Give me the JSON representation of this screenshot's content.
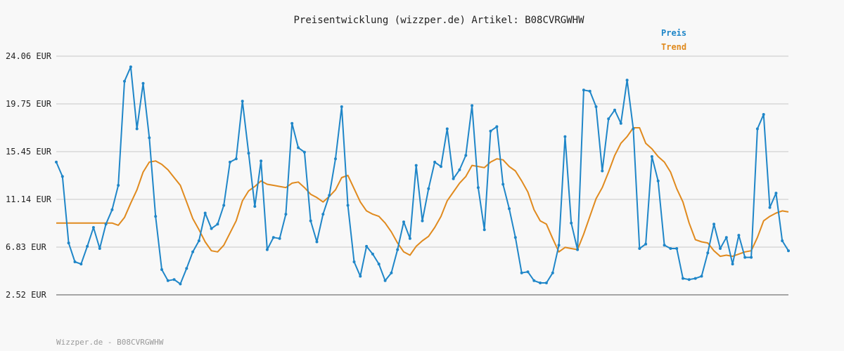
{
  "chart_data": {
    "type": "line",
    "title": "Preisentwicklung (wizzper.de) Artikel: B08CVRGWHW",
    "footer": "Wizzper.de - B08CVRGWHW",
    "y_ticks": [
      "24.06 EUR",
      "19.75 EUR",
      "15.45 EUR",
      "11.14 EUR",
      "6.83 EUR",
      "2.52 EUR"
    ],
    "ylim": [
      2.52,
      24.06
    ],
    "grid": true,
    "legend_position": "top-right",
    "series": [
      {
        "name": "Preis",
        "color": "#1f86c8",
        "markers": true,
        "values": [
          14.5,
          13.2,
          7.2,
          5.5,
          5.3,
          6.9,
          8.6,
          6.7,
          8.9,
          10.2,
          12.4,
          21.8,
          23.1,
          17.5,
          21.6,
          16.7,
          9.6,
          4.8,
          3.8,
          3.9,
          3.5,
          4.9,
          6.4,
          7.4,
          9.9,
          8.5,
          8.9,
          10.6,
          14.5,
          14.8,
          20.0,
          15.3,
          10.5,
          14.6,
          6.6,
          7.7,
          7.6,
          9.8,
          18.0,
          15.8,
          15.4,
          9.2,
          7.3,
          9.8,
          11.5,
          14.8,
          19.5,
          10.6,
          5.5,
          4.2,
          6.9,
          6.2,
          5.3,
          3.8,
          4.5,
          6.6,
          9.1,
          7.6,
          14.2,
          9.2,
          12.1,
          14.5,
          14.1,
          17.5,
          13.0,
          13.8,
          15.1,
          19.6,
          12.2,
          8.4,
          17.3,
          17.7,
          12.5,
          10.3,
          7.7,
          4.5,
          4.6,
          3.8,
          3.6,
          3.6,
          4.5,
          7.0,
          16.8,
          9.0,
          6.6,
          21.0,
          20.9,
          19.5,
          13.7,
          18.4,
          19.2,
          18.0,
          21.9,
          17.5,
          6.7,
          7.1,
          15.0,
          12.8,
          7.0,
          6.7,
          6.7,
          4.0,
          3.9,
          4.0,
          4.2,
          6.3,
          8.9,
          6.7,
          7.7,
          5.3,
          7.9,
          5.9,
          5.9,
          17.5,
          18.8,
          10.4,
          11.7,
          7.4,
          6.5
        ]
      },
      {
        "name": "Trend",
        "color": "#e08a1e",
        "markers": false,
        "values": [
          9.0,
          9.0,
          9.0,
          9.0,
          9.0,
          9.0,
          9.0,
          9.0,
          9.0,
          9.0,
          8.8,
          9.5,
          10.8,
          12.0,
          13.6,
          14.5,
          14.6,
          14.3,
          13.8,
          13.1,
          12.4,
          10.9,
          9.4,
          8.4,
          7.3,
          6.5,
          6.4,
          7.0,
          8.1,
          9.2,
          11.0,
          11.9,
          12.3,
          12.8,
          12.5,
          12.4,
          12.3,
          12.2,
          12.6,
          12.7,
          12.2,
          11.6,
          11.3,
          10.9,
          11.4,
          12.0,
          13.1,
          13.3,
          12.1,
          10.9,
          10.1,
          9.8,
          9.6,
          9.0,
          8.2,
          7.2,
          6.4,
          6.1,
          6.9,
          7.4,
          7.8,
          8.6,
          9.6,
          11.0,
          11.8,
          12.6,
          13.2,
          14.2,
          14.1,
          14.0,
          14.5,
          14.8,
          14.7,
          14.1,
          13.7,
          12.8,
          11.8,
          10.2,
          9.2,
          8.9,
          7.6,
          6.4,
          6.8,
          6.7,
          6.6,
          8.0,
          9.6,
          11.2,
          12.2,
          13.6,
          15.1,
          16.2,
          16.8,
          17.6,
          17.6,
          16.2,
          15.7,
          15.0,
          14.5,
          13.6,
          12.1,
          10.9,
          9.0,
          7.5,
          7.3,
          7.2,
          6.5,
          6.0,
          6.1,
          6.0,
          6.2,
          6.4,
          6.5,
          7.7,
          9.2,
          9.6,
          9.9,
          10.1,
          10.0
        ]
      }
    ]
  }
}
